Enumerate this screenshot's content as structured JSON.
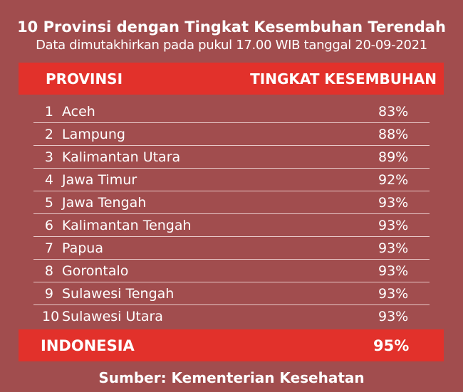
{
  "title": "10 Provinsi dengan Tingkat Kesembuhan Terendah",
  "subtitle": "Data dimutakhirkan pada pukul 17.00 WIB tanggal 20-09-2021",
  "source": "Sumber: Kementerian Kesehatan",
  "colors": {
    "background": "#a14d4e",
    "accent": "#e2312b"
  },
  "chart_data": {
    "type": "table",
    "columns": [
      "PROVINSI",
      "TINGKAT KESEMBUHAN"
    ],
    "rows": [
      {
        "rank": "1",
        "province": "Aceh",
        "value": "83%"
      },
      {
        "rank": "2",
        "province": "Lampung",
        "value": "88%"
      },
      {
        "rank": "3",
        "province": "Kalimantan Utara",
        "value": "89%"
      },
      {
        "rank": "4",
        "province": "Jawa Timur",
        "value": "92%"
      },
      {
        "rank": "5",
        "province": "Jawa Tengah",
        "value": "93%"
      },
      {
        "rank": "6",
        "province": "Kalimantan Tengah",
        "value": "93%"
      },
      {
        "rank": "7",
        "province": "Papua",
        "value": "93%"
      },
      {
        "rank": "8",
        "province": "Gorontalo",
        "value": "93%"
      },
      {
        "rank": "9",
        "province": "Sulawesi Tengah",
        "value": "93%"
      },
      {
        "rank": "10",
        "province": "Sulawesi Utara",
        "value": "93%"
      }
    ],
    "total": {
      "label": "INDONESIA",
      "value": "95%"
    }
  }
}
